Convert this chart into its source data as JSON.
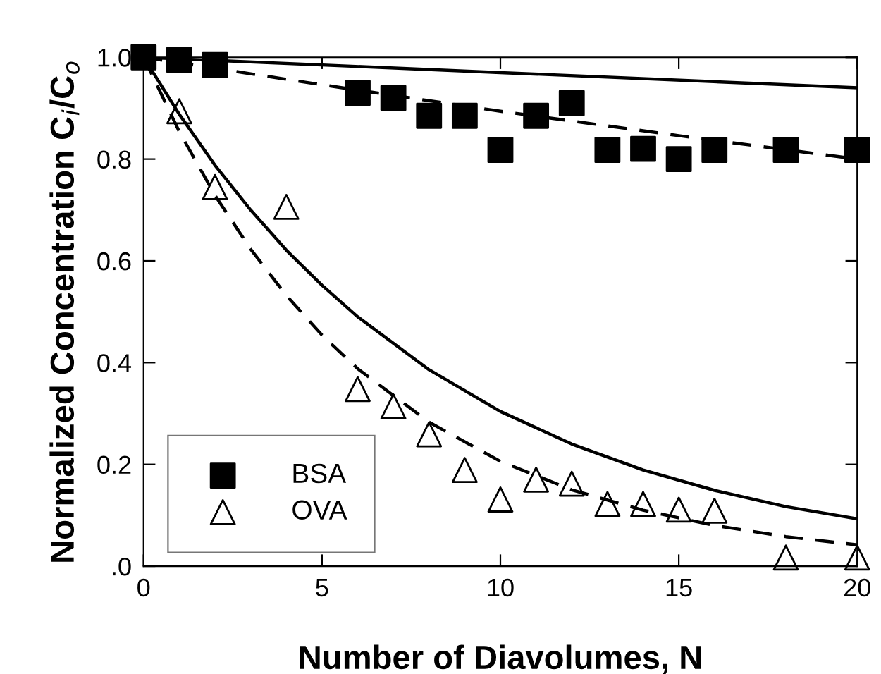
{
  "chart_data": {
    "type": "scatter",
    "xlabel": "Number of Diavolumes, N",
    "ylabel": "Normalized Concentration C$_{i}$/C$_{o}$",
    "xlim": [
      0,
      20
    ],
    "xticks": [
      0,
      5,
      10,
      15,
      20
    ],
    "ylim": [
      0,
      1.0
    ],
    "yticks": [
      {
        "value": 0,
        "label": ".0"
      },
      0.2,
      0.4,
      0.6,
      {
        "value": 1.0,
        "label": "1.0"
      },
      0.8
    ],
    "grid": false,
    "legend": "bottom left",
    "series": [
      {
        "name": "BSA",
        "marker": "square",
        "color": "#000000",
        "x": [
          0,
          1,
          2,
          6,
          7,
          8,
          9,
          10,
          11,
          12,
          13,
          14,
          15,
          16,
          18,
          20
        ],
        "values": [
          1.0,
          0.995,
          0.985,
          0.93,
          0.92,
          0.885,
          0.885,
          0.818,
          0.885,
          0.91,
          0.818,
          0.82,
          0.8,
          0.818,
          0.818,
          0.818
        ]
      },
      {
        "name": "OVA",
        "marker": "triangle",
        "color": "#000000",
        "x": [
          1,
          2,
          4,
          6,
          7,
          8,
          9,
          10,
          11,
          12,
          13,
          14,
          15,
          16,
          18,
          20
        ],
        "values": [
          0.894,
          0.745,
          0.706,
          0.348,
          0.314,
          0.259,
          0.189,
          0.131,
          0.17,
          0.162,
          0.122,
          0.122,
          0.111,
          0.109,
          0.017,
          0.017
        ]
      },
      {
        "type": "line",
        "line_style": "solid",
        "color": "#000000",
        "x": [
          0,
          10,
          20
        ],
        "values": [
          1.0,
          0.97,
          0.94
        ]
      },
      {
        "type": "line",
        "line_style": "dashed",
        "color": "#000000",
        "x": [
          0,
          5,
          10,
          15,
          20
        ],
        "values": [
          1.0,
          0.946,
          0.894,
          0.846,
          0.8
        ]
      },
      {
        "type": "line",
        "line_style": "solid",
        "color": "#000000",
        "x": [
          0,
          1,
          2,
          3,
          4,
          5,
          6,
          8,
          10,
          12,
          14,
          16,
          18,
          20
        ],
        "values": [
          1.0,
          0.888,
          0.788,
          0.7,
          0.621,
          0.552,
          0.49,
          0.386,
          0.304,
          0.24,
          0.189,
          0.149,
          0.117,
          0.093
        ]
      },
      {
        "type": "line",
        "line_style": "dashed",
        "color": "#000000",
        "x": [
          0,
          1,
          2,
          3,
          4,
          5,
          6,
          8,
          10,
          12,
          14,
          16,
          18,
          20
        ],
        "values": [
          1.0,
          0.854,
          0.729,
          0.623,
          0.532,
          0.454,
          0.388,
          0.283,
          0.206,
          0.15,
          0.11,
          0.08,
          0.058,
          0.042
        ]
      }
    ]
  }
}
